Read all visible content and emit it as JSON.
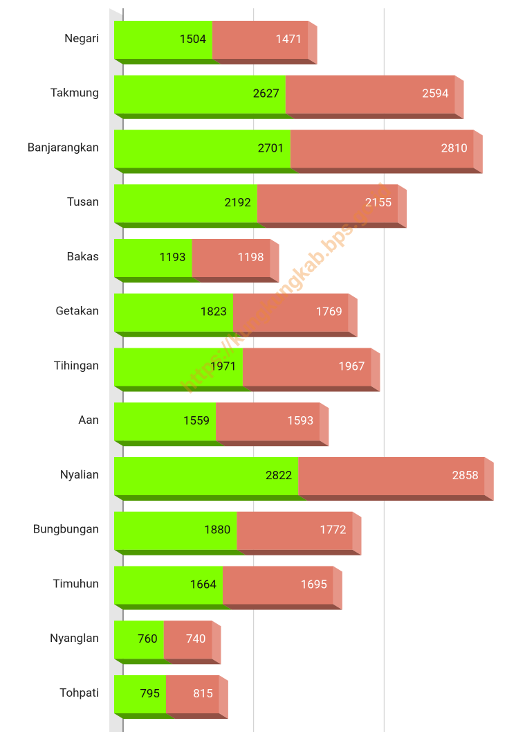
{
  "chart_data": {
    "type": "bar",
    "orientation": "horizontal",
    "stacked": true,
    "categories": [
      "Negari",
      "Takmung",
      "Banjarangkan",
      "Tusan",
      "Bakas",
      "Getakan",
      "Tihingan",
      "Aan",
      "Nyalian",
      "Bungbungan",
      "Timuhun",
      "Nyanglan",
      "Tohpati"
    ],
    "series": [
      {
        "color": "#80ff00",
        "values": [
          1504,
          2627,
          2701,
          2192,
          1193,
          1823,
          1971,
          1559,
          2822,
          1880,
          1664,
          760,
          795
        ]
      },
      {
        "color": "#e07b69",
        "values": [
          1471,
          2594,
          2810,
          2155,
          1198,
          1769,
          1967,
          1593,
          2858,
          1772,
          1695,
          740,
          815
        ]
      }
    ],
    "xlim": [
      0,
      6000
    ],
    "xticks": [
      0,
      2000,
      4000
    ],
    "grid": true,
    "watermark": "https://kungkungkab.bps.go.id"
  }
}
